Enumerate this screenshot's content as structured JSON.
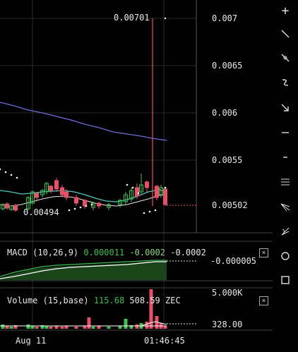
{
  "price_axis": {
    "labels": [
      "0.007",
      "0.0065",
      "0.006",
      "0.0055",
      "0.00502"
    ],
    "high_marker": "0.00701",
    "low_marker": "0.00494"
  },
  "macd": {
    "title": "MACD (10,26,9)",
    "value1": "0.000011",
    "value2": "-0.0002",
    "value3": "-0.0002",
    "axis_label": "-0.000005",
    "colors": {
      "value1": "#3fbf4f",
      "value2": "#8fd67c",
      "value3": "#e8e8e8"
    }
  },
  "volume": {
    "title": "Volume (15,base)",
    "value1": "115.68",
    "value2": "508.59 ZEC",
    "axis_labels": [
      "5.000K",
      "328.00"
    ]
  },
  "time_axis": {
    "labels": [
      "Aug 11",
      "01:46:45"
    ]
  },
  "toolbar": {
    "items": [
      "crosshair-icon",
      "trend-line-icon",
      "ray-icon",
      "brush-icon",
      "arrow-icon",
      "horizontal-line-icon",
      "price-label-icon",
      "parallel-channel-icon",
      "pitchfork-icon",
      "fib-fan-icon",
      "ellipse-icon",
      "rectangle-icon"
    ]
  },
  "colors": {
    "up": "#3fbf4f",
    "down": "#e8506a",
    "ma_slow": "#6a6fd8",
    "ma_fast": "#4fc7c0",
    "macd_line": "#ffffff",
    "signal_line": "#3fbf4f",
    "grid": "#2a2a2a"
  }
}
